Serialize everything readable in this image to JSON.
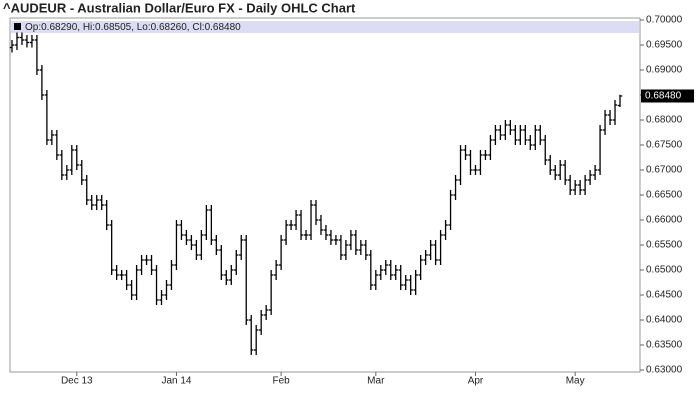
{
  "chart_data": {
    "type": "ohlc",
    "title": "^AUDEUR - Australian Dollar/Euro FX - Daily OHLC Chart",
    "ohlc_header": "Op:0.68290, Hi:0.68505, Lo:0.68260, Cl:0.68480",
    "last_price_label": "0.68480",
    "color": "#000000",
    "header_color": "#dcdcf4",
    "categories": [
      null,
      null,
      null,
      null,
      null,
      null,
      null,
      null,
      null,
      null,
      null,
      null,
      null,
      "Dec 13",
      null,
      null,
      null,
      null,
      null,
      null,
      null,
      null,
      null,
      null,
      null,
      null,
      null,
      null,
      null,
      null,
      null,
      null,
      null,
      "Jan 14",
      null,
      null,
      null,
      null,
      null,
      null,
      null,
      null,
      null,
      null,
      null,
      null,
      null,
      null,
      null,
      null,
      null,
      null,
      null,
      null,
      "Feb",
      null,
      null,
      null,
      null,
      null,
      null,
      null,
      null,
      null,
      null,
      null,
      null,
      null,
      null,
      null,
      null,
      null,
      null,
      "Mar",
      null,
      null,
      null,
      null,
      null,
      null,
      null,
      null,
      null,
      null,
      null,
      null,
      null,
      null,
      null,
      null,
      null,
      null,
      null,
      "Apr",
      null,
      null,
      null,
      null,
      null,
      null,
      null,
      null,
      null,
      null,
      null,
      null,
      null,
      null,
      null,
      null,
      null,
      null,
      null,
      "May",
      null,
      null,
      null,
      null,
      null,
      null,
      null,
      null,
      null
    ],
    "open": [
      0.6945,
      0.695,
      0.6965,
      0.696,
      0.6955,
      0.696,
      0.69,
      0.685,
      0.676,
      0.677,
      0.673,
      0.669,
      0.67,
      0.674,
      0.671,
      0.668,
      0.664,
      0.663,
      0.664,
      0.663,
      0.659,
      0.65,
      0.649,
      0.649,
      0.647,
      0.645,
      0.65,
      0.652,
      0.652,
      0.65,
      0.644,
      0.645,
      0.647,
      0.651,
      0.659,
      0.657,
      0.656,
      0.655,
      0.653,
      0.657,
      0.662,
      0.656,
      0.654,
      0.649,
      0.648,
      0.65,
      0.653,
      0.656,
      0.64,
      0.634,
      0.638,
      0.641,
      0.642,
      0.649,
      0.651,
      0.656,
      0.659,
      0.659,
      0.661,
      0.657,
      0.657,
      0.663,
      0.66,
      0.658,
      0.657,
      0.656,
      0.656,
      0.653,
      0.655,
      0.657,
      0.654,
      0.655,
      0.653,
      0.647,
      0.649,
      0.65,
      0.651,
      0.649,
      0.65,
      0.647,
      0.648,
      0.646,
      0.649,
      0.652,
      0.653,
      0.655,
      0.652,
      0.657,
      0.659,
      0.665,
      0.668,
      0.674,
      0.673,
      0.67,
      0.67,
      0.673,
      0.673,
      0.676,
      0.678,
      0.677,
      0.679,
      0.678,
      0.676,
      0.678,
      0.676,
      0.675,
      0.678,
      0.676,
      0.672,
      0.67,
      0.669,
      0.671,
      0.668,
      0.666,
      0.667,
      0.666,
      0.668,
      0.669,
      0.67,
      0.678,
      0.681,
      0.68,
      0.6829
    ],
    "high": [
      0.696,
      0.6975,
      0.6975,
      0.697,
      0.697,
      0.697,
      0.691,
      0.686,
      0.678,
      0.678,
      0.674,
      0.671,
      0.675,
      0.675,
      0.672,
      0.669,
      0.665,
      0.665,
      0.665,
      0.664,
      0.66,
      0.651,
      0.65,
      0.65,
      0.648,
      0.651,
      0.653,
      0.653,
      0.653,
      0.651,
      0.646,
      0.648,
      0.652,
      0.66,
      0.66,
      0.658,
      0.657,
      0.656,
      0.658,
      0.663,
      0.663,
      0.657,
      0.655,
      0.65,
      0.651,
      0.654,
      0.657,
      0.657,
      0.641,
      0.639,
      0.642,
      0.643,
      0.65,
      0.652,
      0.657,
      0.66,
      0.66,
      0.662,
      0.662,
      0.658,
      0.664,
      0.664,
      0.661,
      0.659,
      0.658,
      0.657,
      0.657,
      0.656,
      0.658,
      0.658,
      0.656,
      0.656,
      0.654,
      0.65,
      0.651,
      0.652,
      0.652,
      0.651,
      0.651,
      0.649,
      0.649,
      0.65,
      0.653,
      0.654,
      0.656,
      0.656,
      0.658,
      0.66,
      0.666,
      0.669,
      0.675,
      0.675,
      0.674,
      0.671,
      0.674,
      0.674,
      0.677,
      0.679,
      0.679,
      0.68,
      0.68,
      0.679,
      0.679,
      0.679,
      0.677,
      0.679,
      0.679,
      0.677,
      0.673,
      0.671,
      0.672,
      0.672,
      0.669,
      0.668,
      0.668,
      0.669,
      0.67,
      0.671,
      0.679,
      0.682,
      0.682,
      0.684,
      0.68505
    ],
    "low": [
      0.6935,
      0.694,
      0.695,
      0.6945,
      0.6945,
      0.689,
      0.684,
      0.675,
      0.675,
      0.672,
      0.668,
      0.668,
      0.669,
      0.67,
      0.667,
      0.663,
      0.662,
      0.662,
      0.662,
      0.658,
      0.649,
      0.648,
      0.648,
      0.646,
      0.644,
      0.644,
      0.649,
      0.651,
      0.649,
      0.643,
      0.643,
      0.644,
      0.646,
      0.65,
      0.656,
      0.655,
      0.654,
      0.652,
      0.652,
      0.656,
      0.655,
      0.653,
      0.648,
      0.647,
      0.647,
      0.649,
      0.652,
      0.639,
      0.633,
      0.633,
      0.637,
      0.64,
      0.641,
      0.648,
      0.65,
      0.655,
      0.658,
      0.658,
      0.656,
      0.656,
      0.656,
      0.659,
      0.657,
      0.656,
      0.655,
      0.655,
      0.652,
      0.652,
      0.654,
      0.653,
      0.653,
      0.652,
      0.646,
      0.646,
      0.648,
      0.649,
      0.648,
      0.648,
      0.646,
      0.646,
      0.645,
      0.645,
      0.648,
      0.651,
      0.652,
      0.651,
      0.651,
      0.656,
      0.658,
      0.664,
      0.667,
      0.672,
      0.669,
      0.669,
      0.669,
      0.672,
      0.672,
      0.675,
      0.676,
      0.676,
      0.677,
      0.675,
      0.675,
      0.675,
      0.674,
      0.674,
      0.675,
      0.671,
      0.669,
      0.668,
      0.668,
      0.667,
      0.665,
      0.665,
      0.665,
      0.665,
      0.667,
      0.668,
      0.669,
      0.677,
      0.679,
      0.679,
      0.6826
    ],
    "close": [
      0.695,
      0.6965,
      0.696,
      0.6955,
      0.696,
      0.69,
      0.685,
      0.676,
      0.677,
      0.673,
      0.669,
      0.67,
      0.674,
      0.671,
      0.668,
      0.664,
      0.663,
      0.664,
      0.663,
      0.659,
      0.65,
      0.649,
      0.649,
      0.647,
      0.645,
      0.65,
      0.652,
      0.652,
      0.65,
      0.644,
      0.645,
      0.647,
      0.651,
      0.659,
      0.657,
      0.656,
      0.655,
      0.653,
      0.657,
      0.662,
      0.656,
      0.654,
      0.649,
      0.648,
      0.65,
      0.653,
      0.656,
      0.64,
      0.634,
      0.638,
      0.641,
      0.642,
      0.649,
      0.651,
      0.656,
      0.659,
      0.659,
      0.661,
      0.657,
      0.657,
      0.663,
      0.66,
      0.658,
      0.657,
      0.656,
      0.656,
      0.653,
      0.655,
      0.657,
      0.654,
      0.655,
      0.653,
      0.647,
      0.649,
      0.65,
      0.651,
      0.649,
      0.65,
      0.647,
      0.648,
      0.646,
      0.649,
      0.652,
      0.653,
      0.655,
      0.652,
      0.657,
      0.659,
      0.665,
      0.668,
      0.674,
      0.673,
      0.67,
      0.67,
      0.673,
      0.673,
      0.676,
      0.678,
      0.677,
      0.679,
      0.678,
      0.676,
      0.678,
      0.676,
      0.675,
      0.678,
      0.676,
      0.672,
      0.67,
      0.669,
      0.671,
      0.668,
      0.666,
      0.667,
      0.666,
      0.668,
      0.669,
      0.67,
      0.678,
      0.681,
      0.68,
      0.683,
      0.6848
    ],
    "ylim": [
      0.63,
      0.7
    ],
    "yticks": [
      {
        "value": 0.63,
        "label": "0.63000"
      },
      {
        "value": 0.635,
        "label": "0.63500"
      },
      {
        "value": 0.64,
        "label": "0.64000"
      },
      {
        "value": 0.645,
        "label": "0.64500"
      },
      {
        "value": 0.65,
        "label": "0.65000"
      },
      {
        "value": 0.655,
        "label": "0.65500"
      },
      {
        "value": 0.66,
        "label": "0.66000"
      },
      {
        "value": 0.665,
        "label": "0.66500"
      },
      {
        "value": 0.67,
        "label": "0.67000"
      },
      {
        "value": 0.675,
        "label": "0.67500"
      },
      {
        "value": 0.68,
        "label": "0.68000"
      },
      {
        "value": 0.685,
        "label": "0.68500"
      },
      {
        "value": 0.69,
        "label": "0.69000"
      },
      {
        "value": 0.695,
        "label": "0.69500"
      },
      {
        "value": 0.7,
        "label": "0.70000"
      }
    ]
  }
}
